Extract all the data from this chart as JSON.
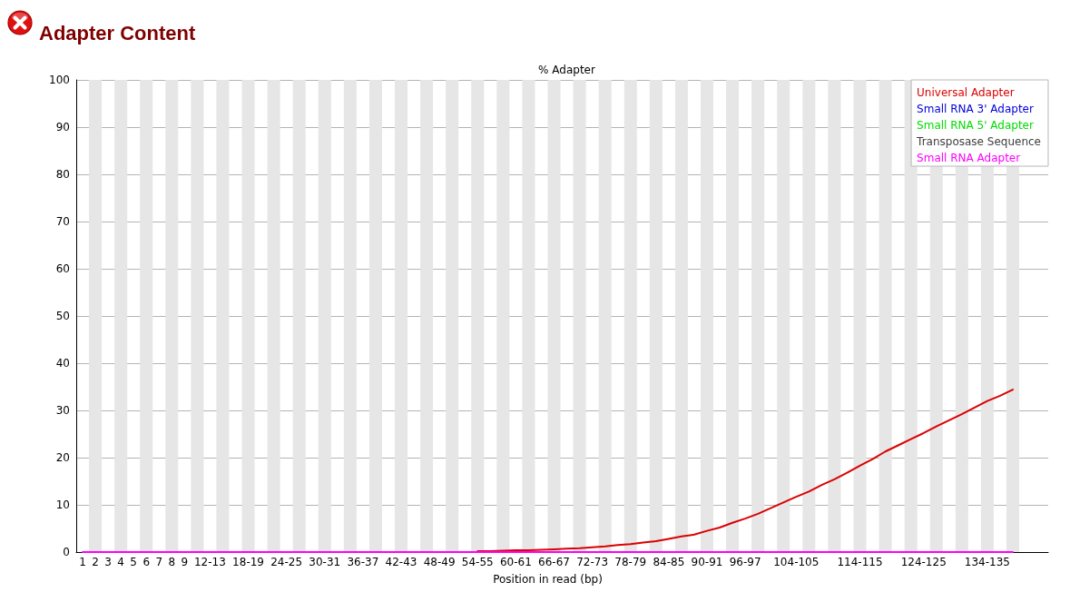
{
  "chart_data": {
    "type": "line",
    "title": "Adapter Content",
    "subtitle": "% Adapter",
    "xlabel": "Position in read (bp)",
    "categories": [
      "1",
      "2",
      "3",
      "4",
      "5",
      "6",
      "7",
      "8",
      "9",
      null,
      "12-13",
      null,
      null,
      "18-19",
      null,
      null,
      "24-25",
      null,
      null,
      "30-31",
      null,
      null,
      "36-37",
      null,
      null,
      "42-43",
      null,
      null,
      "48-49",
      null,
      null,
      "54-55",
      null,
      null,
      "60-61",
      null,
      null,
      "66-67",
      null,
      null,
      "72-73",
      null,
      null,
      "78-79",
      null,
      null,
      "84-85",
      null,
      null,
      "90-91",
      null,
      null,
      "96-97",
      null,
      null,
      null,
      "104-105",
      null,
      null,
      null,
      null,
      "114-115",
      null,
      null,
      null,
      null,
      "124-125",
      null,
      null,
      null,
      null,
      "134-135",
      null,
      null
    ],
    "series": [
      {
        "name": "Universal Adapter",
        "color": "#dc0000",
        "values": [
          null,
          null,
          null,
          null,
          null,
          null,
          null,
          null,
          null,
          null,
          null,
          null,
          null,
          null,
          null,
          null,
          null,
          null,
          null,
          null,
          null,
          null,
          null,
          null,
          null,
          null,
          null,
          null,
          null,
          null,
          null,
          0.2,
          0.2,
          0.3,
          0.4,
          0.4,
          0.5,
          0.6,
          0.7,
          0.8,
          1.0,
          1.2,
          1.5,
          1.7,
          2.0,
          2.3,
          2.8,
          3.3,
          3.7,
          4.5,
          5.2,
          6.2,
          7.1,
          8.1,
          9.3,
          10.5,
          11.7,
          12.8,
          14.2,
          15.4,
          16.8,
          18.3,
          19.7,
          21.3,
          22.6,
          23.9,
          25.2,
          26.6,
          27.9,
          29.2,
          30.6,
          32.0,
          33.1,
          34.4
        ]
      },
      {
        "name": "Small RNA 3' Adapter",
        "color": "#0000dc",
        "values": [
          null,
          null,
          null,
          null,
          null,
          null,
          null,
          null,
          null,
          null,
          null,
          null,
          null,
          null,
          null,
          null,
          null,
          null,
          null,
          null,
          null,
          null,
          null,
          null,
          null,
          null,
          null,
          null,
          null,
          null,
          null,
          null,
          null,
          null,
          null,
          null,
          null,
          null,
          null,
          null,
          null,
          null,
          null,
          null,
          null,
          null,
          null,
          null,
          null,
          null,
          null,
          null,
          null,
          null,
          null,
          null,
          null,
          null,
          null,
          null,
          null,
          null,
          null,
          null,
          null,
          null,
          null,
          null,
          null,
          null,
          null,
          null,
          null,
          null
        ]
      },
      {
        "name": "Small RNA 5' Adapter",
        "color": "#00dc00",
        "values": [
          null,
          null,
          null,
          null,
          null,
          null,
          null,
          null,
          null,
          null,
          null,
          null,
          null,
          null,
          null,
          null,
          null,
          null,
          null,
          null,
          null,
          null,
          null,
          null,
          null,
          null,
          null,
          null,
          null,
          null,
          null,
          null,
          null,
          null,
          null,
          null,
          null,
          null,
          null,
          null,
          null,
          null,
          null,
          null,
          null,
          null,
          null,
          null,
          null,
          null,
          null,
          null,
          null,
          null,
          null,
          null,
          null,
          null,
          null,
          null,
          null,
          null,
          null,
          null,
          null,
          null,
          null,
          null,
          null,
          null,
          null,
          null,
          null,
          null
        ]
      },
      {
        "name": "Transposase Sequence",
        "color": "#404040",
        "values": [
          null,
          null,
          null,
          null,
          null,
          null,
          null,
          null,
          null,
          null,
          null,
          null,
          null,
          null,
          null,
          null,
          null,
          null,
          null,
          null,
          null,
          null,
          null,
          null,
          null,
          null,
          null,
          null,
          null,
          null,
          null,
          null,
          null,
          null,
          null,
          null,
          null,
          null,
          null,
          null,
          null,
          null,
          null,
          null,
          null,
          null,
          null,
          null,
          null,
          null,
          null,
          null,
          null,
          null,
          null,
          null,
          null,
          null,
          null,
          null,
          null,
          null,
          null,
          null,
          null,
          null,
          null,
          null,
          null,
          null,
          null,
          null,
          null,
          null
        ]
      },
      {
        "name": "Small RNA Adapter",
        "color": "#ff00ff",
        "values": [
          0,
          0,
          0,
          0,
          0,
          0,
          0,
          0,
          0,
          0,
          0,
          0,
          0,
          0,
          0,
          0,
          0,
          0,
          0,
          0,
          0,
          0,
          0,
          0,
          0,
          0,
          0,
          0,
          0,
          0,
          0,
          0,
          0,
          0,
          0,
          0,
          0,
          0,
          0,
          0,
          0,
          0,
          0,
          0,
          0,
          0,
          0,
          0,
          0,
          0,
          0,
          0,
          0,
          0,
          0,
          0,
          0,
          0,
          0,
          0,
          0,
          0,
          0,
          0,
          0,
          0,
          0,
          0,
          0,
          0,
          0,
          0,
          0,
          0
        ]
      }
    ],
    "ylim": [
      0,
      100
    ],
    "yticks": [
      0,
      10,
      20,
      30,
      40,
      50,
      60,
      70,
      80,
      90,
      100
    ],
    "grid": "y",
    "legend": "top right",
    "line_style": "solid"
  }
}
